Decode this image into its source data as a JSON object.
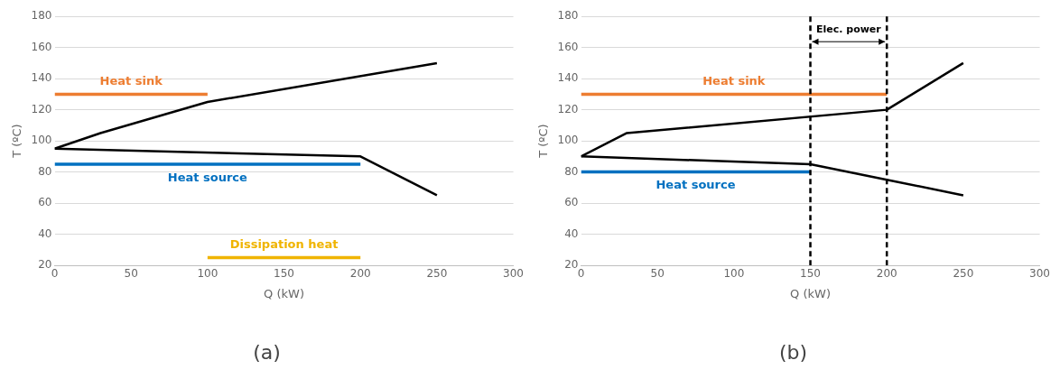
{
  "chart_data": [
    {
      "type": "line",
      "xlabel": "Q (kW)",
      "ylabel": "T (ºC)",
      "xlim": [
        0,
        300
      ],
      "ylim": [
        20,
        180
      ],
      "xticks": [
        0,
        50,
        100,
        150,
        200,
        250,
        300
      ],
      "yticks": [
        20,
        40,
        60,
        80,
        100,
        120,
        140,
        160,
        180
      ],
      "grid": "y",
      "marker": "none",
      "annotations": [
        "(a)"
      ],
      "series": [
        {
          "color": "#000000",
          "x": [
            0,
            30,
            100,
            250
          ],
          "values": [
            95,
            105,
            125,
            150
          ]
        },
        {
          "color": "#000000",
          "x": [
            0,
            200,
            250
          ],
          "values": [
            95,
            90,
            65
          ]
        },
        {
          "name": "Heat sink",
          "color": "#ed7d31",
          "x": [
            0,
            100
          ],
          "values": [
            130,
            130
          ]
        },
        {
          "name": "Heat source",
          "color": "#0070c0",
          "x": [
            0,
            200
          ],
          "values": [
            85,
            85
          ]
        },
        {
          "name": "Dissipation heat",
          "color": "#f0b400",
          "x": [
            100,
            200
          ],
          "values": [
            25,
            25
          ]
        }
      ]
    },
    {
      "type": "line",
      "xlabel": "Q (kW)",
      "ylabel": "T (ºC)",
      "xlim": [
        0,
        300
      ],
      "ylim": [
        20,
        180
      ],
      "xticks": [
        0,
        50,
        100,
        150,
        200,
        250,
        300
      ],
      "yticks": [
        20,
        40,
        60,
        80,
        100,
        120,
        140,
        160,
        180
      ],
      "grid": "y",
      "marker": "none",
      "annotations": [
        "Elec. power",
        "(b)"
      ],
      "ref_lines": [
        {
          "axis": "x",
          "value": 150,
          "color": "#000000",
          "line_style": "dashed"
        },
        {
          "axis": "x",
          "value": 200,
          "color": "#000000",
          "line_style": "dashed"
        }
      ],
      "series": [
        {
          "color": "#000000",
          "x": [
            0,
            30,
            200,
            250
          ],
          "values": [
            90,
            105,
            120,
            150
          ]
        },
        {
          "color": "#000000",
          "x": [
            0,
            150,
            200,
            250
          ],
          "values": [
            90,
            85,
            75,
            65
          ]
        },
        {
          "name": "Heat sink",
          "color": "#ed7d31",
          "x": [
            0,
            200
          ],
          "values": [
            130,
            130
          ]
        },
        {
          "name": "Heat source",
          "color": "#0070c0",
          "x": [
            0,
            150
          ],
          "values": [
            80,
            80
          ]
        }
      ]
    }
  ]
}
